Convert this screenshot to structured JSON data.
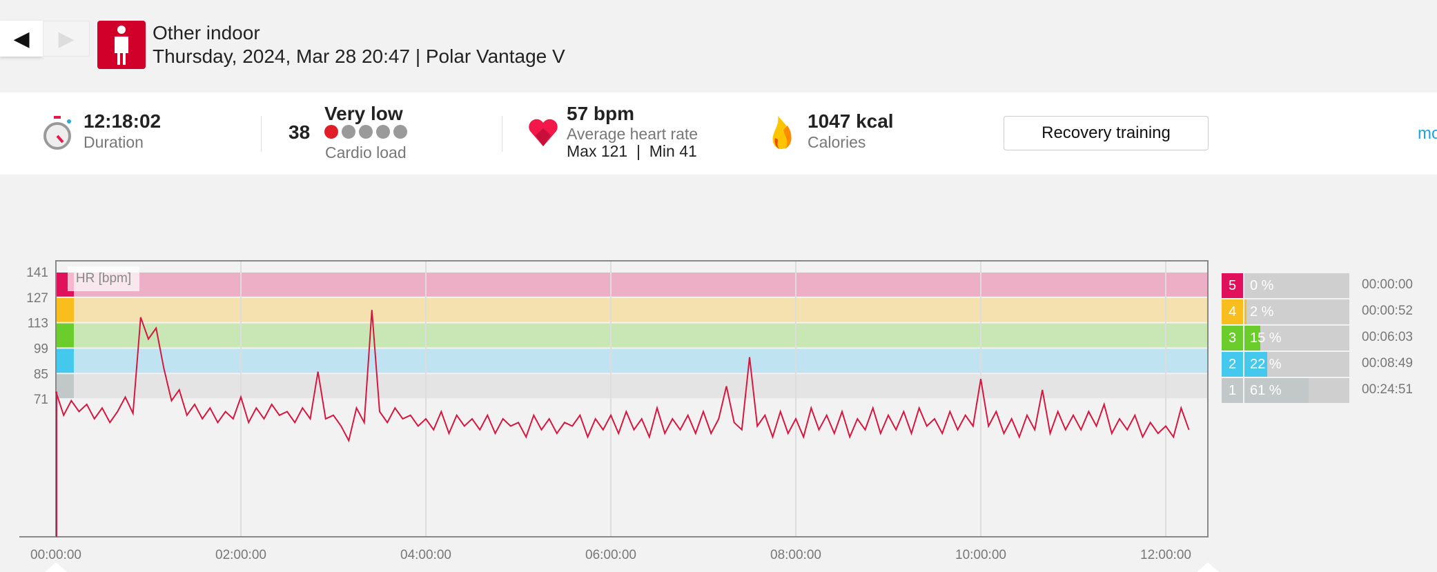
{
  "header": {
    "back_icon": "◀",
    "forward_icon": "▶",
    "sport": "Other indoor",
    "subtitle": "Thursday, 2024, Mar 28 20:47 | Polar Vantage V"
  },
  "summary": {
    "duration": {
      "value": "12:18:02",
      "label": "Duration"
    },
    "cardio": {
      "value": "38",
      "level": "Very low",
      "label": "Cardio load",
      "filled_dots": 1,
      "total_dots": 5
    },
    "hr": {
      "value": "57 bpm",
      "label": "Average heart rate",
      "maxmin": "Max 121  |  Min 41"
    },
    "calories": {
      "value": "1047 kcal",
      "label": "Calories"
    },
    "benefit_button": "Recovery training",
    "more_link": "mo"
  },
  "zones": [
    {
      "zone": "5",
      "pct_label": "0 %",
      "pct": 0,
      "time": "00:00:00",
      "color": "#e0105a",
      "band": "#ecafc5"
    },
    {
      "zone": "4",
      "pct_label": "2 %",
      "pct": 2,
      "time": "00:00:52",
      "color": "#f9bd1e",
      "band": "#f5e1b0"
    },
    {
      "zone": "3",
      "pct_label": "15 %",
      "pct": 15,
      "time": "00:06:03",
      "color": "#6acd2b",
      "band": "#c9e6b5"
    },
    {
      "zone": "2",
      "pct_label": "22 %",
      "pct": 22,
      "time": "00:08:49",
      "color": "#44c8ee",
      "band": "#bfe3f1"
    },
    {
      "zone": "1",
      "pct_label": "61 %",
      "pct": 61,
      "time": "00:24:51",
      "color": "#c2c8c7",
      "band": "#e3e4e3"
    }
  ],
  "chart_data": {
    "type": "line",
    "ylabel": "HR [bpm]",
    "yticks": [
      141,
      127,
      113,
      99,
      85,
      71
    ],
    "xticks": [
      "00:00:00",
      "02:00:00",
      "04:00:00",
      "06:00:00",
      "08:00:00",
      "10:00:00",
      "12:00:00"
    ],
    "xtick_minutes": [
      0,
      120,
      240,
      360,
      480,
      600,
      720
    ],
    "sample_interval_min": 5,
    "line_color": "#d6163f",
    "values": [
      75,
      62,
      70,
      64,
      68,
      60,
      66,
      58,
      64,
      72,
      63,
      116,
      104,
      110,
      88,
      70,
      76,
      62,
      68,
      60,
      66,
      58,
      64,
      60,
      72,
      58,
      66,
      60,
      68,
      62,
      64,
      58,
      66,
      60,
      86,
      60,
      62,
      56,
      48,
      66,
      58,
      120,
      64,
      58,
      66,
      60,
      62,
      56,
      60,
      54,
      64,
      52,
      62,
      56,
      60,
      54,
      62,
      52,
      60,
      56,
      58,
      50,
      62,
      54,
      60,
      52,
      58,
      56,
      62,
      50,
      60,
      54,
      62,
      52,
      64,
      54,
      60,
      50,
      66,
      52,
      60,
      54,
      62,
      52,
      64,
      52,
      60,
      78,
      58,
      54,
      94,
      56,
      62,
      50,
      64,
      52,
      60,
      50,
      66,
      54,
      62,
      52,
      64,
      50,
      60,
      54,
      66,
      52,
      62,
      54,
      64,
      52,
      66,
      56,
      60,
      52,
      64,
      54,
      62,
      56,
      82,
      56,
      64,
      52,
      60,
      50,
      62,
      54,
      76,
      52,
      64,
      54,
      62,
      54,
      64,
      56,
      68,
      52,
      60,
      54,
      62,
      50,
      58,
      52,
      56,
      50,
      66,
      54
    ]
  }
}
